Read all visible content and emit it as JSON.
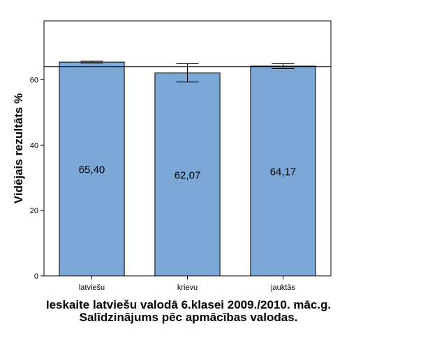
{
  "chart_data": {
    "type": "bar",
    "title": "Ieskaite latviešu valodā 6.klasei 2009./2010. māc.g. Salīdzinājums pēc apmācības valodas.",
    "ylabel": "Vidējais rezultāts %",
    "xlabel": "",
    "categories": [
      "latviešu",
      "krievu",
      "jauktās"
    ],
    "values": [
      65.4,
      62.07,
      64.17
    ],
    "value_labels": [
      "65,40",
      "62,07",
      "64,17"
    ],
    "error_bars": [
      {
        "low": 65.1,
        "high": 65.7
      },
      {
        "low": 59.3,
        "high": 64.9
      },
      {
        "low": 63.4,
        "high": 64.9
      }
    ],
    "reference_line": 64.0,
    "ylim": [
      0,
      78
    ],
    "yticks": [
      0,
      20,
      40,
      60
    ],
    "ytick_labels": [
      "0",
      "20",
      "40",
      "60"
    ],
    "grid": false,
    "bar_color": "#7BA7D6"
  }
}
